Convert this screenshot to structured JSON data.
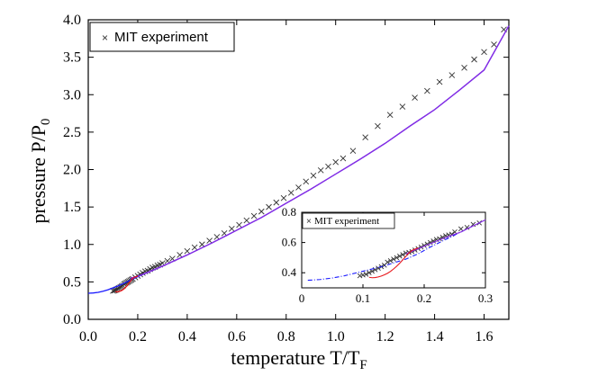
{
  "chart_data": [
    {
      "type": "line",
      "title": "",
      "xlabel": "temperature T/T",
      "xlabel_sub": "F",
      "ylabel": "pressure P/P",
      "ylabel_sub": "0",
      "xlim": [
        0.0,
        1.7
      ],
      "ylim": [
        0.0,
        4.0
      ],
      "xticks": [
        "0.0",
        "0.2",
        "0.4",
        "0.6",
        "0.8",
        "1.0",
        "1.2",
        "1.4",
        "1.6"
      ],
      "yticks": [
        "0.0",
        "0.5",
        "1.0",
        "1.5",
        "2.0",
        "2.5",
        "3.0",
        "3.5",
        "4.0"
      ],
      "grid": false,
      "legend": {
        "position": "top-left",
        "entries": [
          "MIT experiment"
        ]
      },
      "series": [
        {
          "name": "MIT experiment",
          "style": "x-marker",
          "color": "#333333",
          "x": [
            0.1,
            0.105,
            0.11,
            0.115,
            0.12,
            0.125,
            0.13,
            0.135,
            0.14,
            0.145,
            0.15,
            0.155,
            0.16,
            0.165,
            0.17,
            0.175,
            0.18,
            0.19,
            0.2,
            0.21,
            0.22,
            0.23,
            0.24,
            0.25,
            0.26,
            0.27,
            0.28,
            0.29,
            0.3,
            0.32,
            0.34,
            0.37,
            0.4,
            0.43,
            0.46,
            0.49,
            0.52,
            0.55,
            0.58,
            0.61,
            0.64,
            0.67,
            0.7,
            0.73,
            0.76,
            0.79,
            0.82,
            0.85,
            0.88,
            0.91,
            0.94,
            0.97,
            1.0,
            1.03,
            1.07,
            1.12,
            1.17,
            1.22,
            1.27,
            1.32,
            1.37,
            1.42,
            1.47,
            1.52,
            1.56,
            1.6,
            1.64,
            1.68
          ],
          "y": [
            0.38,
            0.385,
            0.39,
            0.4,
            0.41,
            0.42,
            0.43,
            0.44,
            0.45,
            0.47,
            0.48,
            0.49,
            0.5,
            0.51,
            0.52,
            0.53,
            0.54,
            0.56,
            0.58,
            0.6,
            0.62,
            0.64,
            0.65,
            0.67,
            0.69,
            0.7,
            0.72,
            0.73,
            0.75,
            0.78,
            0.81,
            0.86,
            0.91,
            0.96,
            1.0,
            1.05,
            1.1,
            1.15,
            1.21,
            1.26,
            1.32,
            1.38,
            1.44,
            1.5,
            1.56,
            1.62,
            1.69,
            1.76,
            1.84,
            1.92,
            1.99,
            2.04,
            2.1,
            2.15,
            2.25,
            2.43,
            2.58,
            2.73,
            2.84,
            2.96,
            3.05,
            3.17,
            3.26,
            3.36,
            3.47,
            3.57,
            3.67,
            3.87
          ]
        },
        {
          "name": "theory (blue)",
          "style": "line",
          "color": "#1a1aff",
          "x": [
            0.0,
            0.02,
            0.04,
            0.06,
            0.08,
            0.1,
            0.12,
            0.15,
            0.2,
            0.25,
            0.3,
            0.4,
            0.5,
            0.6,
            0.7,
            0.8,
            0.9,
            1.0,
            1.1,
            1.2,
            1.3,
            1.4,
            1.5,
            1.6,
            1.7
          ],
          "y": [
            0.348,
            0.352,
            0.36,
            0.375,
            0.395,
            0.42,
            0.445,
            0.49,
            0.57,
            0.64,
            0.71,
            0.86,
            1.02,
            1.19,
            1.36,
            1.55,
            1.74,
            1.94,
            2.14,
            2.35,
            2.58,
            2.8,
            3.06,
            3.33,
            3.92
          ]
        },
        {
          "name": "theory (purple)",
          "style": "line",
          "color": "#8a2be2",
          "x": [
            0.17,
            0.2,
            0.25,
            0.3,
            0.4,
            0.5,
            0.6,
            0.7,
            0.8,
            0.9,
            1.0,
            1.1,
            1.2,
            1.3,
            1.4,
            1.5,
            1.6,
            1.7
          ],
          "y": [
            0.55,
            0.575,
            0.64,
            0.71,
            0.86,
            1.02,
            1.19,
            1.36,
            1.55,
            1.74,
            1.94,
            2.14,
            2.35,
            2.58,
            2.8,
            3.06,
            3.33,
            3.92
          ]
        },
        {
          "name": "theory (red)",
          "style": "line",
          "color": "#e8161a",
          "x": [
            0.11,
            0.115,
            0.12,
            0.125,
            0.13,
            0.135,
            0.14,
            0.145,
            0.15,
            0.155,
            0.16,
            0.165,
            0.17,
            0.175,
            0.18,
            0.19,
            0.2
          ],
          "y": [
            0.37,
            0.367,
            0.368,
            0.372,
            0.378,
            0.386,
            0.396,
            0.409,
            0.425,
            0.443,
            0.463,
            0.485,
            0.508,
            0.53,
            0.548,
            0.565,
            0.578
          ]
        }
      ]
    },
    {
      "type": "line",
      "title": "",
      "xlabel": "",
      "ylabel": "",
      "xlim": [
        0.0,
        0.3
      ],
      "ylim": [
        0.3,
        0.8
      ],
      "xticks": [
        "0",
        "0.1",
        "0.2",
        "0.3"
      ],
      "yticks": [
        "0.4",
        "0.6",
        "0.8"
      ],
      "grid": false,
      "legend": {
        "position": "top-left",
        "entries": [
          "MIT experiment"
        ]
      },
      "series": [
        {
          "name": "MIT experiment",
          "style": "x-marker",
          "color": "#333333",
          "x": [
            0.095,
            0.1,
            0.105,
            0.11,
            0.115,
            0.12,
            0.125,
            0.13,
            0.135,
            0.14,
            0.145,
            0.15,
            0.155,
            0.16,
            0.165,
            0.17,
            0.175,
            0.18,
            0.185,
            0.19,
            0.195,
            0.2,
            0.205,
            0.21,
            0.215,
            0.22,
            0.225,
            0.23,
            0.235,
            0.24,
            0.245,
            0.25,
            0.26,
            0.27,
            0.28,
            0.29
          ],
          "y": [
            0.38,
            0.385,
            0.39,
            0.4,
            0.41,
            0.42,
            0.43,
            0.44,
            0.45,
            0.47,
            0.48,
            0.49,
            0.5,
            0.51,
            0.52,
            0.53,
            0.535,
            0.54,
            0.55,
            0.56,
            0.57,
            0.58,
            0.59,
            0.6,
            0.61,
            0.62,
            0.625,
            0.635,
            0.645,
            0.65,
            0.655,
            0.67,
            0.69,
            0.7,
            0.72,
            0.73
          ]
        },
        {
          "name": "theory (blue)",
          "style": "dashdot",
          "color": "#1a1aff",
          "x": [
            0.01,
            0.03,
            0.05,
            0.07,
            0.09,
            0.11,
            0.13,
            0.15,
            0.17,
            0.19,
            0.21,
            0.23,
            0.25,
            0.27,
            0.3
          ],
          "y": [
            0.35,
            0.355,
            0.365,
            0.38,
            0.4,
            0.42,
            0.44,
            0.465,
            0.49,
            0.525,
            0.57,
            0.61,
            0.65,
            0.69,
            0.75
          ]
        },
        {
          "name": "theory (purple)",
          "style": "line",
          "color": "#8a2be2",
          "x": [
            0.17,
            0.2,
            0.23,
            0.26,
            0.3
          ],
          "y": [
            0.525,
            0.575,
            0.625,
            0.67,
            0.75
          ]
        },
        {
          "name": "theory (red)",
          "style": "line",
          "color": "#e8161a",
          "x": [
            0.11,
            0.115,
            0.12,
            0.125,
            0.13,
            0.135,
            0.14,
            0.145,
            0.15,
            0.155,
            0.16,
            0.165,
            0.17,
            0.175,
            0.18,
            0.19
          ],
          "y": [
            0.37,
            0.367,
            0.368,
            0.372,
            0.378,
            0.386,
            0.396,
            0.409,
            0.425,
            0.443,
            0.463,
            0.485,
            0.508,
            0.53,
            0.548,
            0.565
          ]
        }
      ]
    }
  ]
}
